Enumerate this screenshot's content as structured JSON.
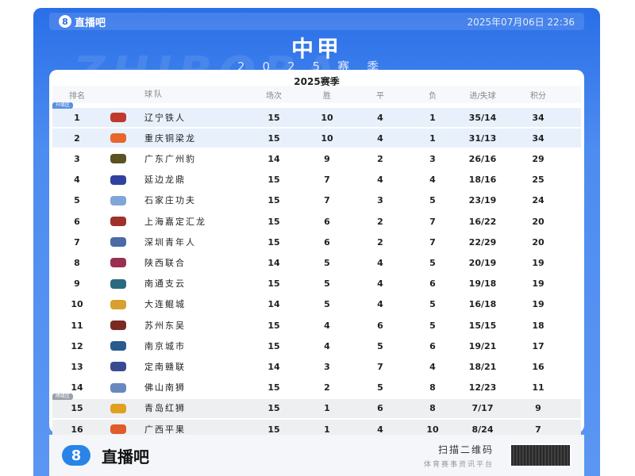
{
  "brand": "直播吧",
  "datetime": "2025年07月06日 22:36",
  "title": "中甲",
  "subtitle": "2025赛季",
  "watermark": "ZHIBOBA",
  "table_title": "2025赛季",
  "headers": [
    "排名",
    "",
    "球队",
    "场次",
    "胜",
    "平",
    "负",
    "进/失球",
    "积分"
  ],
  "zones": {
    "promotion": "升级区",
    "relegation": "降级区"
  },
  "colors": {
    "primary": "#2a6fe8",
    "promotion_row": "#e8f0fb",
    "relegation_row": "#eeeff1"
  },
  "rows": [
    {
      "rank": "1",
      "team": "辽宁铁人",
      "p": "15",
      "w": "10",
      "d": "4",
      "l": "1",
      "g": "35/14",
      "pts": "34",
      "logo": "#c0392b"
    },
    {
      "rank": "2",
      "team": "重庆铜梁龙",
      "p": "15",
      "w": "10",
      "d": "4",
      "l": "1",
      "g": "31/13",
      "pts": "34",
      "logo": "#e8662b"
    },
    {
      "rank": "3",
      "team": "广东广州豹",
      "p": "14",
      "w": "9",
      "d": "2",
      "l": "3",
      "g": "26/16",
      "pts": "29",
      "logo": "#5a5220"
    },
    {
      "rank": "4",
      "team": "延边龙鼎",
      "p": "15",
      "w": "7",
      "d": "4",
      "l": "4",
      "g": "18/16",
      "pts": "25",
      "logo": "#3040a0"
    },
    {
      "rank": "5",
      "team": "石家庄功夫",
      "p": "15",
      "w": "7",
      "d": "3",
      "l": "5",
      "g": "23/19",
      "pts": "24",
      "logo": "#7ea6d8"
    },
    {
      "rank": "6",
      "team": "上海嘉定汇龙",
      "p": "15",
      "w": "6",
      "d": "2",
      "l": "7",
      "g": "16/22",
      "pts": "20",
      "logo": "#a0302a"
    },
    {
      "rank": "7",
      "team": "深圳青年人",
      "p": "15",
      "w": "6",
      "d": "2",
      "l": "7",
      "g": "22/29",
      "pts": "20",
      "logo": "#4a6aa8"
    },
    {
      "rank": "8",
      "team": "陕西联合",
      "p": "14",
      "w": "5",
      "d": "4",
      "l": "5",
      "g": "20/19",
      "pts": "19",
      "logo": "#9a3050"
    },
    {
      "rank": "9",
      "team": "南通支云",
      "p": "15",
      "w": "5",
      "d": "4",
      "l": "6",
      "g": "19/18",
      "pts": "19",
      "logo": "#2a6a80"
    },
    {
      "rank": "10",
      "team": "大连鲲城",
      "p": "14",
      "w": "5",
      "d": "4",
      "l": "5",
      "g": "16/18",
      "pts": "19",
      "logo": "#d8a030"
    },
    {
      "rank": "11",
      "team": "苏州东吴",
      "p": "15",
      "w": "4",
      "d": "6",
      "l": "5",
      "g": "15/15",
      "pts": "18",
      "logo": "#7a2a20"
    },
    {
      "rank": "12",
      "team": "南京城市",
      "p": "15",
      "w": "4",
      "d": "5",
      "l": "6",
      "g": "19/21",
      "pts": "17",
      "logo": "#2a5a90"
    },
    {
      "rank": "13",
      "team": "定南赣联",
      "p": "14",
      "w": "3",
      "d": "7",
      "l": "4",
      "g": "18/21",
      "pts": "16",
      "logo": "#3a4a90"
    },
    {
      "rank": "14",
      "team": "佛山南狮",
      "p": "15",
      "w": "2",
      "d": "5",
      "l": "8",
      "g": "12/23",
      "pts": "11",
      "logo": "#6a88c0"
    },
    {
      "rank": "15",
      "team": "青岛红狮",
      "p": "15",
      "w": "1",
      "d": "6",
      "l": "8",
      "g": "7/17",
      "pts": "9",
      "logo": "#e0a020"
    },
    {
      "rank": "16",
      "team": "广西平果",
      "p": "15",
      "w": "1",
      "d": "4",
      "l": "10",
      "g": "8/24",
      "pts": "7",
      "logo": "#e05a2a"
    }
  ],
  "footer": {
    "brand": "直播吧",
    "scan": "扫描二维码",
    "tagline": "体育赛事资讯平台"
  }
}
